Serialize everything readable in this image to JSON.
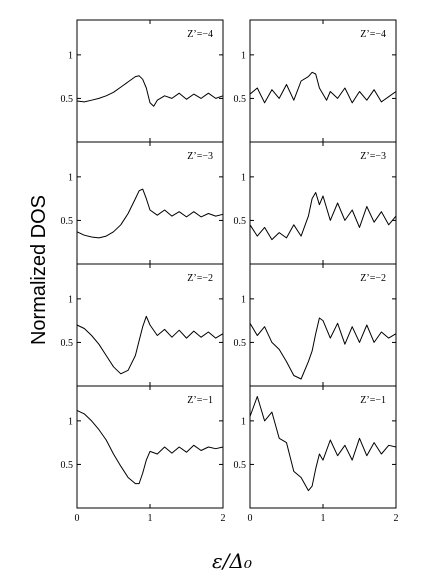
{
  "chart_data": {
    "type": "line",
    "ylabel": "Normalized DOS",
    "xlabel": "ε/Δ₀",
    "xlim": [
      0,
      2
    ],
    "ylim": [
      0,
      1.4
    ],
    "xticks": [
      "0",
      "1",
      "2"
    ],
    "yticks": [
      "0.5",
      "1"
    ],
    "panels": [
      {
        "label": "Z’=−4",
        "column": "left",
        "row": 0,
        "x": [
          0,
          0.1,
          0.2,
          0.3,
          0.4,
          0.5,
          0.6,
          0.7,
          0.8,
          0.85,
          0.9,
          0.95,
          1.0,
          1.05,
          1.1,
          1.2,
          1.3,
          1.4,
          1.5,
          1.6,
          1.7,
          1.8,
          1.9,
          2.0
        ],
        "y": [
          0.47,
          0.46,
          0.48,
          0.5,
          0.53,
          0.57,
          0.63,
          0.69,
          0.75,
          0.76,
          0.72,
          0.62,
          0.45,
          0.41,
          0.48,
          0.53,
          0.5,
          0.56,
          0.49,
          0.55,
          0.5,
          0.56,
          0.5,
          0.53
        ]
      },
      {
        "label": "Z’=−4",
        "column": "right",
        "row": 0,
        "x": [
          0,
          0.1,
          0.2,
          0.3,
          0.4,
          0.5,
          0.6,
          0.7,
          0.8,
          0.85,
          0.9,
          0.95,
          1.0,
          1.05,
          1.1,
          1.2,
          1.3,
          1.4,
          1.5,
          1.6,
          1.7,
          1.8,
          1.9,
          2.0
        ],
        "y": [
          0.55,
          0.62,
          0.45,
          0.6,
          0.5,
          0.66,
          0.48,
          0.7,
          0.75,
          0.8,
          0.78,
          0.62,
          0.55,
          0.48,
          0.58,
          0.5,
          0.62,
          0.45,
          0.58,
          0.48,
          0.6,
          0.46,
          0.52,
          0.58
        ]
      },
      {
        "label": "Z’=−3",
        "column": "left",
        "row": 1,
        "x": [
          0,
          0.1,
          0.2,
          0.3,
          0.4,
          0.5,
          0.6,
          0.7,
          0.8,
          0.85,
          0.9,
          0.95,
          1.0,
          1.1,
          1.2,
          1.3,
          1.4,
          1.5,
          1.6,
          1.7,
          1.8,
          1.9,
          2.0
        ],
        "y": [
          0.37,
          0.33,
          0.31,
          0.3,
          0.32,
          0.37,
          0.45,
          0.58,
          0.75,
          0.84,
          0.86,
          0.75,
          0.62,
          0.56,
          0.62,
          0.55,
          0.6,
          0.54,
          0.6,
          0.54,
          0.58,
          0.55,
          0.57
        ]
      },
      {
        "label": "Z’=−3",
        "column": "right",
        "row": 1,
        "x": [
          0,
          0.1,
          0.2,
          0.3,
          0.4,
          0.5,
          0.6,
          0.7,
          0.8,
          0.85,
          0.9,
          0.95,
          1.0,
          1.1,
          1.2,
          1.3,
          1.4,
          1.5,
          1.6,
          1.7,
          1.8,
          1.9,
          2.0
        ],
        "y": [
          0.45,
          0.32,
          0.42,
          0.28,
          0.36,
          0.3,
          0.45,
          0.32,
          0.55,
          0.75,
          0.82,
          0.68,
          0.78,
          0.5,
          0.7,
          0.5,
          0.62,
          0.42,
          0.66,
          0.48,
          0.6,
          0.45,
          0.55
        ]
      },
      {
        "label": "Z’=−2",
        "column": "left",
        "row": 2,
        "x": [
          0,
          0.1,
          0.2,
          0.3,
          0.4,
          0.5,
          0.6,
          0.7,
          0.8,
          0.85,
          0.9,
          0.95,
          1.0,
          1.1,
          1.2,
          1.3,
          1.4,
          1.5,
          1.6,
          1.7,
          1.8,
          1.9,
          2.0
        ],
        "y": [
          0.7,
          0.66,
          0.58,
          0.48,
          0.35,
          0.22,
          0.14,
          0.18,
          0.35,
          0.52,
          0.68,
          0.8,
          0.7,
          0.58,
          0.65,
          0.56,
          0.64,
          0.55,
          0.63,
          0.56,
          0.62,
          0.55,
          0.6
        ]
      },
      {
        "label": "Z’=−2",
        "column": "right",
        "row": 2,
        "x": [
          0,
          0.1,
          0.2,
          0.3,
          0.4,
          0.5,
          0.6,
          0.7,
          0.8,
          0.85,
          0.9,
          0.95,
          1.0,
          1.1,
          1.2,
          1.3,
          1.4,
          1.5,
          1.6,
          1.7,
          1.8,
          1.9,
          2.0
        ],
        "y": [
          0.72,
          0.58,
          0.68,
          0.5,
          0.42,
          0.28,
          0.12,
          0.08,
          0.28,
          0.4,
          0.6,
          0.78,
          0.75,
          0.55,
          0.72,
          0.48,
          0.68,
          0.5,
          0.7,
          0.5,
          0.62,
          0.55,
          0.6
        ]
      },
      {
        "label": "Z’=−1",
        "column": "left",
        "row": 3,
        "x": [
          0,
          0.1,
          0.2,
          0.3,
          0.4,
          0.5,
          0.6,
          0.7,
          0.8,
          0.85,
          0.9,
          0.95,
          1.0,
          1.1,
          1.2,
          1.3,
          1.4,
          1.5,
          1.6,
          1.7,
          1.8,
          1.9,
          2.0
        ],
        "y": [
          1.12,
          1.08,
          1.0,
          0.9,
          0.78,
          0.62,
          0.48,
          0.35,
          0.28,
          0.28,
          0.4,
          0.55,
          0.65,
          0.62,
          0.7,
          0.63,
          0.7,
          0.64,
          0.72,
          0.66,
          0.7,
          0.68,
          0.7
        ]
      },
      {
        "label": "Z’=−1",
        "column": "right",
        "row": 3,
        "x": [
          0,
          0.1,
          0.2,
          0.3,
          0.4,
          0.5,
          0.6,
          0.7,
          0.8,
          0.85,
          0.9,
          0.95,
          1.0,
          1.1,
          1.2,
          1.3,
          1.4,
          1.5,
          1.6,
          1.7,
          1.8,
          1.9,
          2.0
        ],
        "y": [
          1.05,
          1.28,
          1.0,
          1.1,
          0.8,
          0.75,
          0.42,
          0.35,
          0.2,
          0.25,
          0.45,
          0.62,
          0.55,
          0.78,
          0.6,
          0.72,
          0.55,
          0.8,
          0.6,
          0.75,
          0.62,
          0.72,
          0.7
        ]
      }
    ]
  }
}
